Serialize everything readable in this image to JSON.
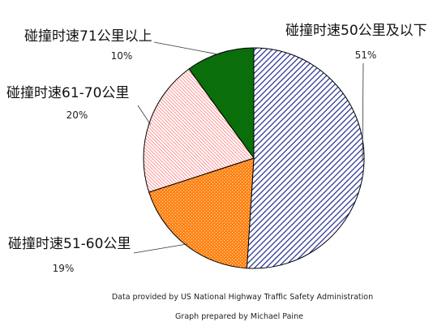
{
  "chart_data": {
    "type": "pie",
    "slices": [
      {
        "label": "碰撞时速50公里及以下",
        "value": 51,
        "value_label": "51%",
        "color": "#1e2a8c",
        "fill_style": "diagonal-hatch"
      },
      {
        "label": "碰撞时速51-60公里",
        "value": 19,
        "value_label": "19%",
        "color": "#ff7f0e",
        "fill_style": "dotted"
      },
      {
        "label": "碰撞时速61-70公里",
        "value": 20,
        "value_label": "20%",
        "color": "#ff8c8c",
        "fill_style": "fine-hatch"
      },
      {
        "label": "碰撞时速71公里以上",
        "value": 10,
        "value_label": "10%",
        "color": "#0a6e0a",
        "fill_style": "solid"
      }
    ],
    "start_angle_deg": 0,
    "direction": "clockwise",
    "credits": [
      "Data provided by US National Highway Traffic Safety Administration",
      "Graph prepared by Michael Paine"
    ]
  }
}
